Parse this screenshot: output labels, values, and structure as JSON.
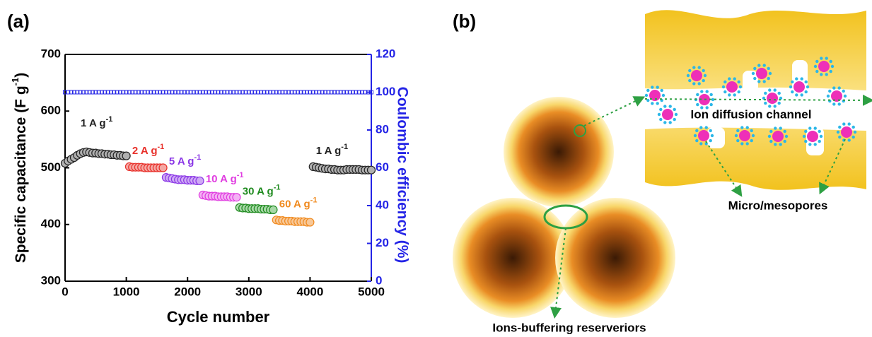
{
  "chart_data": {
    "type": "scatter",
    "panel_label": "(a)",
    "x_label": "Cycle number",
    "y_label": {
      "text": "Specific capacitance (F g",
      "sup": "-1",
      "end": ")"
    },
    "y2_label": "Coulombic efficiency (%)",
    "xlim": [
      0,
      5000
    ],
    "xticks": [
      0,
      1000,
      2000,
      3000,
      4000,
      5000
    ],
    "ylim": [
      300,
      700
    ],
    "yticks": [
      300,
      400,
      500,
      600,
      700
    ],
    "y2lim": [
      0,
      120
    ],
    "y2ticks": [
      0,
      20,
      40,
      60,
      80,
      100,
      120
    ],
    "series": [
      {
        "label": {
          "text": "1 A g",
          "sup": "-1"
        },
        "color": "#222222",
        "fill": "#b0b0b0",
        "x": [
          0,
          50,
          100,
          150,
          200,
          250,
          300,
          350,
          400,
          450,
          500,
          550,
          600,
          650,
          700,
          750,
          800,
          850,
          900,
          950,
          1000
        ],
        "values": [
          508,
          512,
          515,
          518,
          522,
          525,
          527,
          528,
          527,
          526,
          526,
          525,
          525,
          524,
          524,
          523,
          523,
          522,
          522,
          521,
          521
        ]
      },
      {
        "label": {
          "text": "2 A g",
          "sup": "-1"
        },
        "color": "#e8302a",
        "fill": "#f4a8a4",
        "x": [
          1050,
          1100,
          1150,
          1200,
          1250,
          1300,
          1350,
          1400,
          1450,
          1500,
          1550,
          1600
        ],
        "values": [
          502,
          501,
          501,
          501,
          501,
          500,
          500,
          500,
          500,
          500,
          500,
          500
        ]
      },
      {
        "label": {
          "text": "5 A g",
          "sup": "-1"
        },
        "color": "#8a36e6",
        "fill": "#cfaaf4",
        "x": [
          1650,
          1700,
          1750,
          1800,
          1850,
          1900,
          1950,
          2000,
          2050,
          2100,
          2150,
          2200
        ],
        "values": [
          483,
          482,
          481,
          480,
          479,
          479,
          479,
          478,
          478,
          478,
          477,
          477
        ]
      },
      {
        "label": {
          "text": "10 A g",
          "sup": "-1"
        },
        "color": "#e03ce0",
        "fill": "#f4b0f4",
        "x": [
          2250,
          2300,
          2350,
          2400,
          2450,
          2500,
          2550,
          2600,
          2650,
          2700,
          2750,
          2800
        ],
        "values": [
          452,
          451,
          450,
          450,
          450,
          449,
          449,
          449,
          449,
          448,
          448,
          448
        ]
      },
      {
        "label": {
          "text": "30 A g",
          "sup": "-1"
        },
        "color": "#1e8a1e",
        "fill": "#a8d8a8",
        "x": [
          2850,
          2900,
          2950,
          3000,
          3050,
          3100,
          3150,
          3200,
          3250,
          3300,
          3350,
          3400
        ],
        "values": [
          430,
          429,
          429,
          428,
          428,
          428,
          428,
          427,
          427,
          427,
          426,
          426
        ]
      },
      {
        "label": {
          "text": "60 A g",
          "sup": "-1"
        },
        "color": "#f08a1e",
        "fill": "#f8c898",
        "x": [
          3450,
          3500,
          3550,
          3600,
          3650,
          3700,
          3750,
          3800,
          3850,
          3900,
          3950,
          4000
        ],
        "values": [
          408,
          407,
          407,
          406,
          406,
          406,
          405,
          405,
          405,
          405,
          404,
          404
        ]
      },
      {
        "label": {
          "text": "1 A g",
          "sup": "-1"
        },
        "color": "#222222",
        "fill": "#b0b0b0",
        "x": [
          4050,
          4100,
          4150,
          4200,
          4250,
          4300,
          4350,
          4400,
          4450,
          4500,
          4550,
          4600,
          4650,
          4700,
          4750,
          4800,
          4850,
          4900,
          4950,
          5000
        ],
        "values": [
          502,
          501,
          500,
          499,
          498,
          498,
          497,
          497,
          496,
          496,
          496,
          497,
          497,
          497,
          497,
          497,
          496,
          496,
          496,
          496
        ]
      },
      {
        "axis": "y2",
        "marker": "square",
        "color": "#2424e6",
        "x": [
          0,
          50,
          100,
          150,
          200,
          250,
          300,
          350,
          400,
          450,
          500,
          550,
          600,
          650,
          700,
          750,
          800,
          850,
          900,
          950,
          1000,
          1050,
          1100,
          1150,
          1200,
          1250,
          1300,
          1350,
          1400,
          1450,
          1500,
          1550,
          1600,
          1650,
          1700,
          1750,
          1800,
          1850,
          1900,
          1950,
          2000,
          2050,
          2100,
          2150,
          2200,
          2250,
          2300,
          2350,
          2400,
          2450,
          2500,
          2550,
          2600,
          2650,
          2700,
          2750,
          2800,
          2850,
          2900,
          2950,
          3000,
          3050,
          3100,
          3150,
          3200,
          3250,
          3300,
          3350,
          3400,
          3450,
          3500,
          3550,
          3600,
          3650,
          3700,
          3750,
          3800,
          3850,
          3900,
          3950,
          4000,
          4050,
          4100,
          4150,
          4200,
          4250,
          4300,
          4350,
          4400,
          4450,
          4500,
          4550,
          4600,
          4650,
          4700,
          4750,
          4800,
          4850,
          4900,
          4950,
          5000
        ],
        "values": [
          100,
          100,
          100,
          100,
          100,
          100,
          100,
          100,
          100,
          100,
          100,
          100,
          100,
          100,
          100,
          100,
          100,
          100,
          100,
          100,
          100,
          100,
          100,
          100,
          100,
          100,
          100,
          100,
          100,
          100,
          100,
          100,
          100,
          100,
          100,
          100,
          100,
          100,
          100,
          100,
          100,
          100,
          100,
          100,
          100,
          100,
          100,
          100,
          100,
          100,
          100,
          100,
          100,
          100,
          100,
          100,
          100,
          100,
          100,
          100,
          100,
          100,
          100,
          100,
          100,
          100,
          100,
          100,
          100,
          100,
          100,
          100,
          100,
          100,
          100,
          100,
          100,
          100,
          100,
          100,
          100,
          100,
          100,
          100,
          100,
          100,
          100,
          100,
          100,
          100,
          100,
          100,
          100,
          100,
          100,
          100,
          100,
          100,
          100,
          100,
          100
        ]
      }
    ]
  },
  "diagram": {
    "panel_label": "(b)",
    "channel_label": "Ion diffusion channel",
    "pores_label": "Micro/mesopores",
    "reservoir_label": "Ions-buffering reserveriors"
  }
}
